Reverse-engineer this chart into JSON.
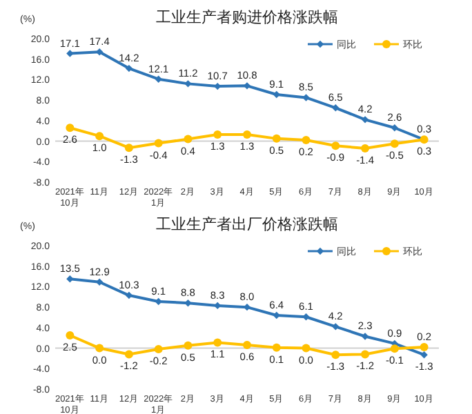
{
  "chart_data": [
    {
      "type": "line",
      "title": "工业生产者购进价格涨跌幅",
      "ylabel": "(%)",
      "categories": [
        "2021年\n10月",
        "11月",
        "12月",
        "2022年\n1月",
        "2月",
        "3月",
        "4月",
        "5月",
        "6月",
        "7月",
        "8月",
        "9月",
        "10月"
      ],
      "series": [
        {
          "name": "同比",
          "color": "#2e75b6",
          "marker": "diamond",
          "values": [
            17.1,
            17.4,
            14.2,
            12.1,
            11.2,
            10.7,
            10.8,
            9.1,
            8.5,
            6.5,
            4.2,
            2.6,
            0.3
          ],
          "value_labels": [
            "17.1",
            "17.4",
            "14.2",
            "12.1",
            "11.2",
            "10.7",
            "10.8",
            "9.1",
            "8.5",
            "6.5",
            "4.2",
            "2.6",
            "0.3"
          ]
        },
        {
          "name": "环比",
          "color": "#ffc000",
          "marker": "circle",
          "values": [
            2.6,
            1.0,
            -1.3,
            -0.4,
            0.4,
            1.3,
            1.3,
            0.5,
            0.2,
            -0.9,
            -1.4,
            -0.5,
            0.3
          ],
          "value_labels": [
            "2.6",
            "1.0",
            "-1.3",
            "-0.4",
            "0.4",
            "1.3",
            "1.3",
            "0.5",
            "0.2",
            "-0.9",
            "-1.4",
            "-0.5",
            "0.3"
          ]
        }
      ],
      "ylim": [
        -8,
        20
      ],
      "yticks": [
        {
          "value": -8,
          "label": "-8.0"
        },
        {
          "value": -4,
          "label": "-4.0"
        },
        {
          "value": 0,
          "label": "0.0"
        },
        {
          "value": 4,
          "label": "4.0"
        },
        {
          "value": 8,
          "label": "8.0"
        },
        {
          "value": 12,
          "label": "12.0"
        },
        {
          "value": 16,
          "label": "16.0"
        },
        {
          "value": 20,
          "label": "20.0"
        }
      ],
      "ref_lines": [
        {
          "axis": "y",
          "value": 0,
          "color": "#d0d0d0"
        }
      ],
      "legend": "top right"
    },
    {
      "type": "line",
      "title": "工业生产者出厂价格涨跌幅",
      "ylabel": "(%)",
      "categories": [
        "2021年\n10月",
        "11月",
        "12月",
        "2022年\n1月",
        "2月",
        "3月",
        "4月",
        "5月",
        "6月",
        "7月",
        "8月",
        "9月",
        "10月"
      ],
      "series": [
        {
          "name": "同比",
          "color": "#2e75b6",
          "marker": "diamond",
          "values": [
            13.5,
            12.9,
            10.3,
            9.1,
            8.8,
            8.3,
            8.0,
            6.4,
            6.1,
            4.2,
            2.3,
            0.9,
            -1.3
          ],
          "value_labels": [
            "13.5",
            "12.9",
            "10.3",
            "9.1",
            "8.8",
            "8.3",
            "8.0",
            "6.4",
            "6.1",
            "4.2",
            "2.3",
            "0.9",
            "-1.3"
          ]
        },
        {
          "name": "环比",
          "color": "#ffc000",
          "marker": "circle",
          "values": [
            2.5,
            0.0,
            -1.2,
            -0.2,
            0.5,
            1.1,
            0.6,
            0.1,
            0.0,
            -1.3,
            -1.2,
            -0.1,
            0.2
          ],
          "value_labels": [
            "2.5",
            "0.0",
            "-1.2",
            "-0.2",
            "0.5",
            "1.1",
            "0.6",
            "0.1",
            "0.0",
            "-1.3",
            "-1.2",
            "-0.1",
            "0.2"
          ]
        }
      ],
      "ylim": [
        -8,
        20
      ],
      "yticks": [
        {
          "value": -8,
          "label": "-8.0"
        },
        {
          "value": -4,
          "label": "-4.0"
        },
        {
          "value": 0,
          "label": "0.0"
        },
        {
          "value": 4,
          "label": "4.0"
        },
        {
          "value": 8,
          "label": "8.0"
        },
        {
          "value": 12,
          "label": "12.0"
        },
        {
          "value": 16,
          "label": "16.0"
        },
        {
          "value": 20,
          "label": "20.0"
        }
      ],
      "ref_lines": [
        {
          "axis": "y",
          "value": 0,
          "color": "#d0d0d0"
        }
      ],
      "legend": "top right"
    }
  ]
}
